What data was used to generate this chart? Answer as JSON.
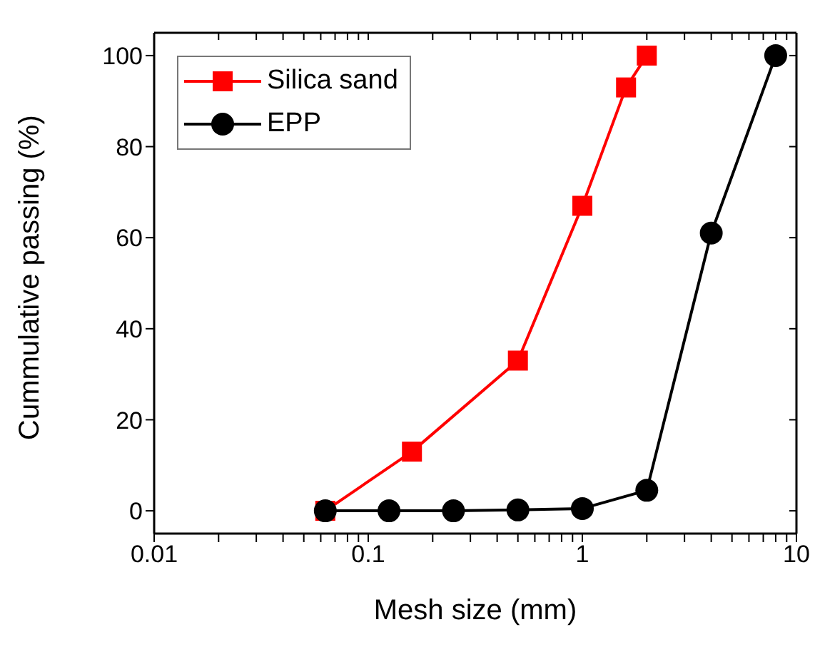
{
  "chart_data": {
    "type": "line",
    "xlabel": "Mesh size (mm)",
    "ylabel": "Cummulative passing (%)",
    "log": "x",
    "xlim": [
      0.01,
      10
    ],
    "xticks": [
      0.01,
      {
        "value": 0.02,
        "label": null
      },
      {
        "value": 0.03,
        "label": null
      },
      {
        "value": 0.04,
        "label": null
      },
      {
        "value": 0.05,
        "label": null
      },
      {
        "value": 0.06,
        "label": null
      },
      {
        "value": 0.07,
        "label": null
      },
      {
        "value": 0.08,
        "label": null
      },
      {
        "value": 0.09,
        "label": null
      },
      0.1,
      {
        "value": 0.2,
        "label": null
      },
      {
        "value": 0.3,
        "label": null
      },
      {
        "value": 0.4,
        "label": null
      },
      {
        "value": 0.5,
        "label": null
      },
      {
        "value": 0.6,
        "label": null
      },
      {
        "value": 0.7,
        "label": null
      },
      {
        "value": 0.8,
        "label": null
      },
      {
        "value": 0.9,
        "label": null
      },
      1,
      {
        "value": 2,
        "label": null
      },
      {
        "value": 3,
        "label": null
      },
      {
        "value": 4,
        "label": null
      },
      {
        "value": 5,
        "label": null
      },
      {
        "value": 6,
        "label": null
      },
      {
        "value": 7,
        "label": null
      },
      {
        "value": 8,
        "label": null
      },
      {
        "value": 9,
        "label": null
      },
      10
    ],
    "ylim": [
      -5,
      105
    ],
    "yticks": [
      0,
      20,
      40,
      60,
      80,
      100
    ],
    "grid": false,
    "legend": "top left",
    "line_style": "solid",
    "series": [
      {
        "name": "Silica sand",
        "color": "#ff0000",
        "marker": "square",
        "x": [
          0.063,
          0.16,
          0.5,
          1,
          1.6,
          2
        ],
        "values": [
          0,
          13,
          33,
          67,
          93,
          100
        ]
      },
      {
        "name": "EPP",
        "color": "#000000",
        "marker": "circle",
        "x": [
          0.063,
          0.125,
          0.25,
          0.5,
          1,
          2,
          4,
          8
        ],
        "values": [
          0,
          0,
          0,
          0.2,
          0.5,
          4.5,
          61,
          100
        ]
      }
    ]
  }
}
